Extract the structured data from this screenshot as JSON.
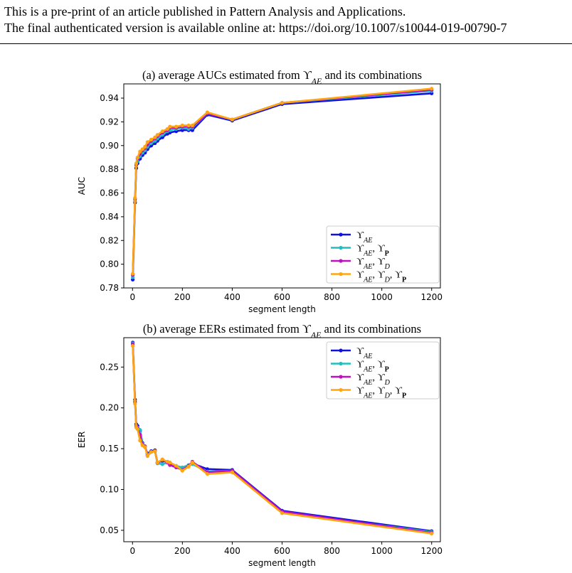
{
  "header": {
    "line1": "This is a pre-print of an article published in Pattern Analysis and Applications.",
    "line2": "The final authenticated version is available online at: https://doi.org/10.1007/s10044-019-00790-7"
  },
  "colors": {
    "s1": "#1010e0",
    "s2": "#1fbfbf",
    "s3": "#bf10bf",
    "s4": "#ffa510"
  },
  "chart_data": [
    {
      "type": "line",
      "title": "(a) average AUCs estimated from ϒ_AE and its combinations",
      "xlabel": "segment length",
      "ylabel": "AUC",
      "xlim": [
        -35,
        1235
      ],
      "ylim": [
        0.78,
        0.952
      ],
      "xticks": [
        0,
        200,
        400,
        600,
        800,
        1000,
        1200
      ],
      "yticks": [
        0.78,
        0.8,
        0.82,
        0.84,
        0.86,
        0.88,
        0.9,
        0.92,
        0.94
      ],
      "legend_position": "lower right",
      "x": [
        1,
        10,
        15,
        20,
        30,
        40,
        50,
        60,
        75,
        90,
        100,
        120,
        140,
        150,
        175,
        200,
        225,
        240,
        300,
        400,
        600,
        1200
      ],
      "series": [
        {
          "name": "ϒ_AE",
          "color_key": "s1",
          "values": [
            0.787,
            0.852,
            0.881,
            0.885,
            0.889,
            0.892,
            0.894,
            0.897,
            0.9,
            0.902,
            0.904,
            0.907,
            0.91,
            0.911,
            0.912,
            0.913,
            0.913,
            0.913,
            0.926,
            0.921,
            0.935,
            0.944
          ]
        },
        {
          "name": "ϒ_AE, ϒ_P",
          "color_key": "s2",
          "values": [
            0.789,
            0.853,
            0.883,
            0.887,
            0.891,
            0.894,
            0.896,
            0.899,
            0.902,
            0.904,
            0.906,
            0.909,
            0.912,
            0.913,
            0.914,
            0.915,
            0.914,
            0.915,
            0.927,
            0.922,
            0.936,
            0.946
          ]
        },
        {
          "name": "ϒ_AE, ϒ_D",
          "color_key": "s3",
          "values": [
            0.791,
            0.855,
            0.884,
            0.889,
            0.893,
            0.896,
            0.898,
            0.901,
            0.904,
            0.906,
            0.908,
            0.911,
            0.913,
            0.915,
            0.915,
            0.916,
            0.916,
            0.916,
            0.927,
            0.922,
            0.936,
            0.947
          ]
        },
        {
          "name": "ϒ_AE, ϒ_D, ϒ_P",
          "color_key": "s4",
          "values": [
            0.792,
            0.856,
            0.885,
            0.89,
            0.895,
            0.897,
            0.899,
            0.903,
            0.905,
            0.907,
            0.909,
            0.912,
            0.914,
            0.916,
            0.916,
            0.917,
            0.917,
            0.917,
            0.928,
            0.922,
            0.936,
            0.948
          ]
        }
      ]
    },
    {
      "type": "line",
      "title": "(b) average EERs estimated from ϒ_AE and its combinations",
      "xlabel": "segment length",
      "ylabel": "EER",
      "xlim": [
        -35,
        1235
      ],
      "ylim": [
        0.036,
        0.286
      ],
      "xticks": [
        0,
        200,
        400,
        600,
        800,
        1000,
        1200
      ],
      "yticks": [
        0.05,
        0.1,
        0.15,
        0.2,
        0.25
      ],
      "legend_position": "upper right",
      "x": [
        1,
        10,
        15,
        20,
        30,
        40,
        50,
        60,
        75,
        90,
        100,
        120,
        140,
        150,
        175,
        200,
        225,
        240,
        300,
        400,
        600,
        1200
      ],
      "series": [
        {
          "name": "ϒ_AE",
          "color_key": "s1",
          "values": [
            0.28,
            0.21,
            0.18,
            0.178,
            0.172,
            0.157,
            0.152,
            0.144,
            0.147,
            0.148,
            0.133,
            0.135,
            0.134,
            0.131,
            0.128,
            0.126,
            0.129,
            0.132,
            0.125,
            0.124,
            0.074,
            0.049
          ]
        },
        {
          "name": "ϒ_AE, ϒ_P",
          "color_key": "s2",
          "values": [
            0.279,
            0.208,
            0.178,
            0.176,
            0.173,
            0.156,
            0.153,
            0.143,
            0.146,
            0.147,
            0.132,
            0.131,
            0.133,
            0.133,
            0.129,
            0.127,
            0.13,
            0.131,
            0.122,
            0.123,
            0.072,
            0.048
          ]
        },
        {
          "name": "ϒ_AE, ϒ_D",
          "color_key": "s3",
          "values": [
            0.278,
            0.207,
            0.177,
            0.175,
            0.167,
            0.155,
            0.153,
            0.142,
            0.146,
            0.147,
            0.133,
            0.136,
            0.133,
            0.13,
            0.127,
            0.124,
            0.129,
            0.134,
            0.121,
            0.123,
            0.073,
            0.047
          ]
        },
        {
          "name": "ϒ_AE, ϒ_D, ϒ_P",
          "color_key": "s4",
          "values": [
            0.276,
            0.205,
            0.176,
            0.174,
            0.16,
            0.154,
            0.152,
            0.141,
            0.146,
            0.147,
            0.133,
            0.137,
            0.134,
            0.133,
            0.129,
            0.123,
            0.128,
            0.133,
            0.119,
            0.121,
            0.071,
            0.046
          ]
        }
      ]
    }
  ]
}
